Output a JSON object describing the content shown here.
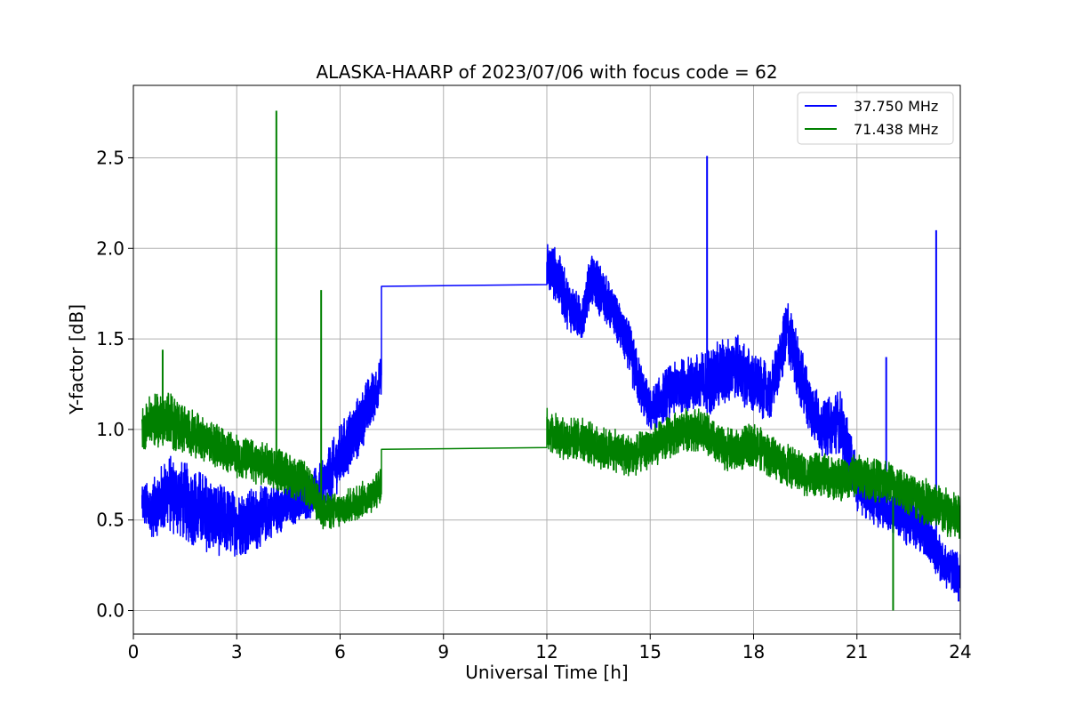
{
  "chart_data": {
    "type": "line",
    "title": "ALASKA-HAARP of 2023/07/06 with focus code = 62",
    "xlabel": "Universal Time [h]",
    "ylabel": "Y-factor [dB]",
    "xlim": [
      0,
      24
    ],
    "ylim": [
      -0.13,
      2.9
    ],
    "x_ticks": [
      0,
      3,
      6,
      9,
      12,
      15,
      18,
      21,
      24
    ],
    "y_ticks": [
      0.0,
      0.5,
      1.0,
      1.5,
      2.0,
      2.5
    ],
    "x_tick_labels": [
      "0",
      "3",
      "6",
      "9",
      "12",
      "15",
      "18",
      "21",
      "24"
    ],
    "y_tick_labels": [
      "0.0",
      "0.5",
      "1.0",
      "1.5",
      "2.0",
      "2.5"
    ],
    "grid": true,
    "legend_position": "top-right",
    "series": [
      {
        "name": "37.750 MHz",
        "color": "#0000ff",
        "segments": [
          {
            "x": [
              0.25,
              0.5,
              1.0,
              1.5,
              2.0,
              2.5,
              3.0,
              3.5,
              4.0,
              4.5,
              5.0,
              5.5,
              6.0,
              6.5,
              7.0,
              7.2
            ],
            "y": [
              0.6,
              0.55,
              0.65,
              0.6,
              0.55,
              0.5,
              0.48,
              0.5,
              0.55,
              0.58,
              0.62,
              0.68,
              0.85,
              1.0,
              1.2,
              1.3
            ],
            "amp": [
              0.12,
              0.15,
              0.22,
              0.22,
              0.22,
              0.2,
              0.18,
              0.18,
              0.15,
              0.12,
              0.12,
              0.15,
              0.18,
              0.18,
              0.15,
              0.1
            ]
          },
          {
            "x": [
              7.2,
              7.2,
              12.0,
              12.0
            ],
            "y": [
              1.3,
              1.79,
              1.8,
              1.9
            ],
            "amp": [
              0,
              0,
              0,
              0
            ]
          },
          {
            "x": [
              12.0,
              12.3,
              12.6,
              13.0,
              13.3,
              13.6,
              14.0,
              14.3,
              14.6,
              15.0,
              15.5,
              16.0,
              16.5,
              17.0,
              17.5,
              18.0,
              18.5,
              19.0,
              19.5,
              20.0,
              20.5,
              21.0,
              21.5,
              22.0,
              22.5,
              23.0,
              23.5,
              24.0
            ],
            "y": [
              1.9,
              1.85,
              1.7,
              1.6,
              1.85,
              1.75,
              1.62,
              1.5,
              1.3,
              1.1,
              1.2,
              1.25,
              1.25,
              1.3,
              1.35,
              1.25,
              1.2,
              1.55,
              1.2,
              1.0,
              1.05,
              0.7,
              0.62,
              0.55,
              0.5,
              0.45,
              0.25,
              0.2
            ],
            "amp": [
              0.15,
              0.15,
              0.15,
              0.12,
              0.15,
              0.15,
              0.12,
              0.15,
              0.15,
              0.12,
              0.15,
              0.15,
              0.18,
              0.2,
              0.18,
              0.18,
              0.15,
              0.18,
              0.18,
              0.15,
              0.18,
              0.15,
              0.15,
              0.12,
              0.15,
              0.15,
              0.12,
              0.12
            ]
          }
        ],
        "spikes": [
          [
            16.65,
            2.51
          ],
          [
            23.3,
            2.1
          ],
          [
            21.85,
            1.4
          ],
          [
            23.95,
            0.05
          ]
        ]
      },
      {
        "name": "71.438 MHz",
        "color": "#008000",
        "segments": [
          {
            "x": [
              0.25,
              0.5,
              1.0,
              1.5,
              2.0,
              2.5,
              3.0,
              3.5,
              4.0,
              4.5,
              5.0,
              5.5,
              6.0,
              6.5,
              7.0,
              7.2
            ],
            "y": [
              1.0,
              1.05,
              1.05,
              1.0,
              0.95,
              0.9,
              0.85,
              0.82,
              0.8,
              0.75,
              0.7,
              0.55,
              0.55,
              0.6,
              0.65,
              0.7
            ],
            "amp": [
              0.12,
              0.14,
              0.16,
              0.14,
              0.12,
              0.12,
              0.12,
              0.12,
              0.12,
              0.12,
              0.12,
              0.1,
              0.1,
              0.1,
              0.1,
              0.1
            ]
          },
          {
            "x": [
              7.2,
              7.2,
              12.0,
              12.0
            ],
            "y": [
              0.7,
              0.89,
              0.9,
              1.0
            ],
            "amp": [
              0,
              0,
              0,
              0
            ]
          },
          {
            "x": [
              12.0,
              12.5,
              13.0,
              13.5,
              14.0,
              14.5,
              15.0,
              15.5,
              16.0,
              16.5,
              17.0,
              17.5,
              18.0,
              18.5,
              19.0,
              19.5,
              20.0,
              20.5,
              21.0,
              21.5,
              22.0,
              22.5,
              23.0,
              23.5,
              24.0
            ],
            "y": [
              1.0,
              0.95,
              0.95,
              0.9,
              0.88,
              0.85,
              0.9,
              0.95,
              1.0,
              1.0,
              0.9,
              0.88,
              0.92,
              0.85,
              0.8,
              0.75,
              0.75,
              0.72,
              0.75,
              0.72,
              0.7,
              0.65,
              0.6,
              0.55,
              0.5
            ],
            "amp": [
              0.12,
              0.12,
              0.12,
              0.12,
              0.12,
              0.12,
              0.12,
              0.12,
              0.12,
              0.12,
              0.12,
              0.12,
              0.12,
              0.12,
              0.12,
              0.12,
              0.12,
              0.12,
              0.12,
              0.12,
              0.12,
              0.12,
              0.14,
              0.14,
              0.14
            ]
          }
        ],
        "spikes": [
          [
            4.15,
            2.76
          ],
          [
            5.45,
            1.77
          ],
          [
            22.05,
            0.0
          ],
          [
            0.85,
            1.44
          ]
        ]
      }
    ]
  }
}
